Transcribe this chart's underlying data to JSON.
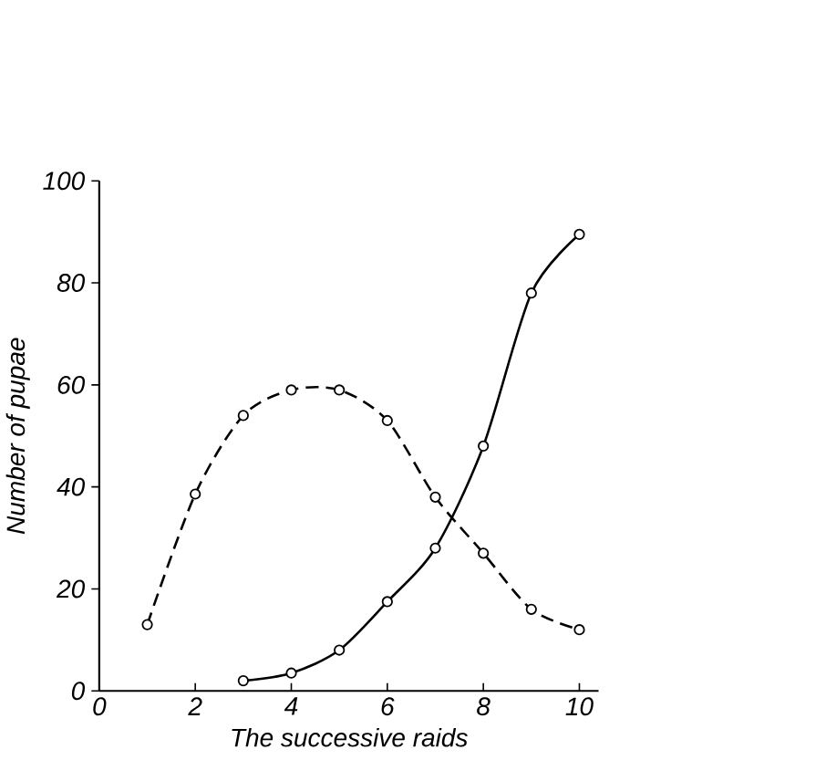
{
  "chart_data": {
    "type": "line",
    "xlabel": "The successive raids",
    "ylabel": "Number of pupae",
    "xlim": [
      0,
      10.4
    ],
    "ylim": [
      0,
      100
    ],
    "xticks": [
      0,
      2,
      4,
      6,
      8,
      10
    ],
    "yticks": [
      0,
      20,
      40,
      60,
      80,
      100
    ],
    "marker": "circle",
    "series": [
      {
        "x": [
          1,
          2,
          3,
          4,
          5,
          6,
          7,
          8,
          9,
          10
        ],
        "values": [
          13,
          38.6,
          54,
          59,
          59,
          53,
          38,
          27,
          16,
          12
        ],
        "color": "#000000",
        "line_style": "dashed"
      },
      {
        "x": [
          3,
          4,
          5,
          6,
          7,
          8,
          9,
          10
        ],
        "values": [
          2,
          3.5,
          8,
          17.5,
          28,
          48,
          78,
          89.5
        ],
        "color": "#000000",
        "line_style": "solid"
      }
    ]
  }
}
